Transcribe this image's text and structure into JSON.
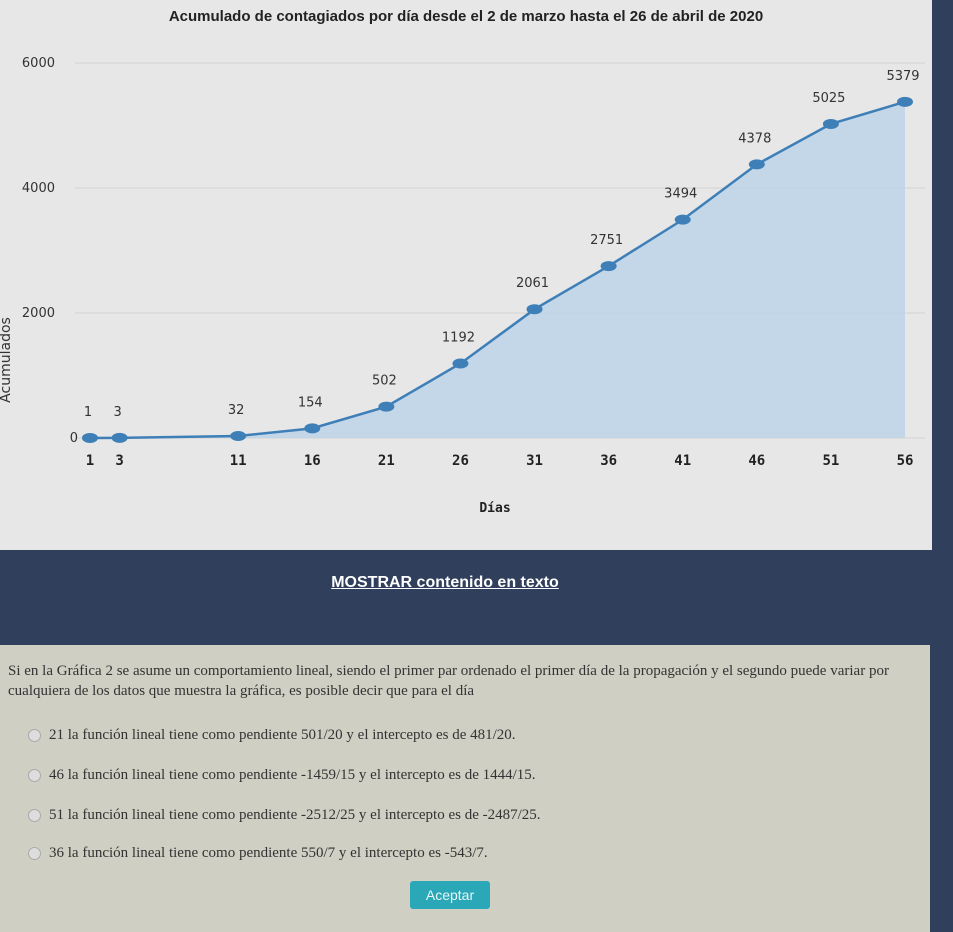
{
  "chart_data": {
    "type": "area",
    "title": "Acumulado de contagiados por día desde el 2 de marzo hasta el 26 de abril de 2020",
    "xlabel": "Días",
    "ylabel": "Acumulados",
    "x": [
      1,
      3,
      11,
      16,
      21,
      26,
      31,
      36,
      41,
      46,
      51,
      56
    ],
    "values": [
      1,
      3,
      32,
      154,
      502,
      1192,
      2061,
      2751,
      3494,
      4378,
      5025,
      5379
    ],
    "x_ticks": [
      1,
      3,
      11,
      16,
      21,
      26,
      31,
      36,
      41,
      46,
      51,
      56
    ],
    "y_ticks": [
      0,
      2000,
      4000,
      6000
    ],
    "ylim": [
      0,
      6000
    ],
    "grid": true,
    "line_color": "#3e7fb8",
    "fill_color": "#bcd3ea"
  },
  "band": {
    "show_text_link": "MOSTRAR contenido en texto"
  },
  "quiz": {
    "question": "Si en la Gráfica 2 se asume un comportamiento lineal, siendo el primer par ordenado el primer día de la propagación y el segundo puede variar por cualquiera de los datos que muestra la gráfica, es posible decir que para el día",
    "options": [
      "21 la función lineal tiene como pendiente 501/20 y el intercepto es de 481/20.",
      "46 la función lineal tiene como pendiente -1459/15 y el intercepto es de 1444/15.",
      "51 la función lineal tiene como pendiente -2512/25 y el intercepto es de -2487/25.",
      "36 la función lineal tiene como pendiente 550/7 y el intercepto es -543/7."
    ],
    "accept_label": "Aceptar"
  }
}
